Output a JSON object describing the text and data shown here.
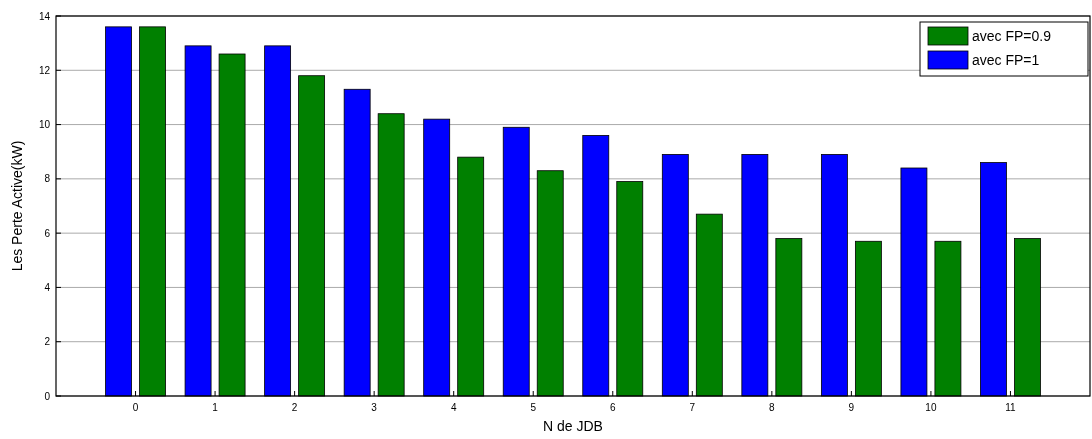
{
  "chart_data": {
    "type": "bar",
    "xlabel": "N de JDB",
    "ylabel": "Les Perte Active(kW)",
    "x": [
      0,
      1,
      2,
      3,
      4,
      5,
      6,
      7,
      8,
      9,
      10,
      11
    ],
    "xlim": [
      -1,
      12
    ],
    "xticks": [
      0,
      1,
      2,
      3,
      4,
      5,
      6,
      7,
      8,
      9,
      10,
      11
    ],
    "ylim": [
      0,
      14
    ],
    "yticks": [
      0,
      2,
      4,
      6,
      8,
      10,
      12,
      14
    ],
    "series": [
      {
        "name": "avec FP=1",
        "color": "#0000ff",
        "values": [
          13.6,
          12.9,
          12.9,
          11.3,
          10.2,
          9.9,
          9.6,
          8.9,
          8.9,
          8.9,
          8.4,
          8.6
        ]
      },
      {
        "name": "avec FP=0.9",
        "color": "#008000",
        "values": [
          13.6,
          12.6,
          11.8,
          10.4,
          8.8,
          8.3,
          7.9,
          6.7,
          5.8,
          5.7,
          5.7,
          5.8
        ]
      }
    ],
    "grid": "y",
    "legend": "top right"
  }
}
